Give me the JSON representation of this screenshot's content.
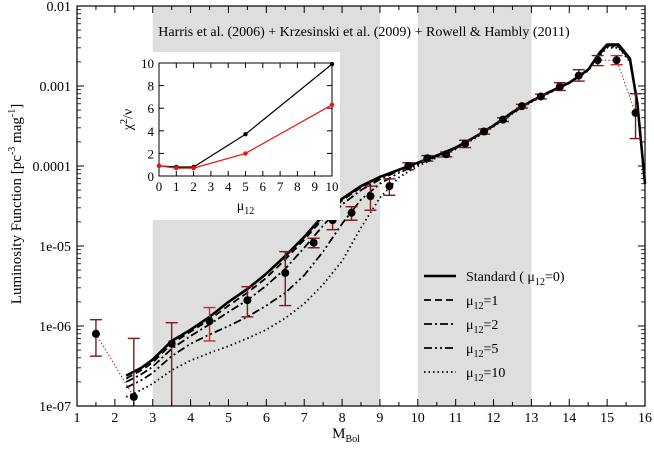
{
  "chart_data": {
    "type": "line",
    "annotation": "Harris et  al. (2006) + Krzesinski et al. (2009) + Rowell & Hambly (2011)",
    "xlabel": "M",
    "xlabel_sub": "Bol",
    "ylabel": "Luminosity Function [pc",
    "ylabel_sup1": "-3",
    "ylabel_mid": " mag",
    "ylabel_sup2": "-1",
    "ylabel_end": "]",
    "xlim": [
      1,
      16
    ],
    "ylim": [
      1e-07,
      0.01
    ],
    "yscale": "log",
    "x_ticks": [
      "1",
      "2",
      "3",
      "4",
      "5",
      "6",
      "7",
      "8",
      "9",
      "10",
      "11",
      "12",
      "13",
      "14",
      "15",
      "16"
    ],
    "y_ticks": [
      {
        "value": 1e-07,
        "label": "1e-07"
      },
      {
        "value": 1e-06,
        "label": "1e-06"
      },
      {
        "value": 1e-05,
        "label": "1e-05"
      },
      {
        "value": 0.0001,
        "label": "0.0001"
      },
      {
        "value": 0.001,
        "label": "0.001"
      },
      {
        "value": 0.01,
        "label": "0.01"
      }
    ],
    "shaded_bands": [
      [
        3,
        9
      ],
      [
        10,
        13
      ]
    ],
    "series": [
      {
        "name": "Standard ( μ12=0)",
        "legend_label": "Standard ( μ",
        "legend_sub": "12",
        "legend_end": "=0)",
        "style": "solid",
        "x": [
          2.3,
          2.7,
          3.0,
          3.5,
          4.0,
          4.5,
          5.0,
          5.5,
          6.0,
          6.5,
          7.0,
          7.5,
          8.0,
          8.5,
          9.0,
          9.5,
          10.0,
          10.5,
          11.0,
          11.5,
          12.0,
          12.5,
          13.0,
          13.5,
          14.0,
          14.5,
          14.8,
          15.0,
          15.3,
          15.6,
          15.8,
          16.0
        ],
        "y": [
          2.4e-07,
          3e-07,
          3.8e-07,
          6.5e-07,
          9e-07,
          1.3e-06,
          2e-06,
          2.9e-06,
          4.5e-06,
          7.5e-06,
          1.3e-05,
          2.4e-05,
          3.9e-05,
          5.6e-05,
          7.3e-05,
          9e-05,
          0.00011,
          0.000135,
          0.00017,
          0.00023,
          0.00032,
          0.00047,
          0.00065,
          0.00085,
          0.0011,
          0.0016,
          0.0026,
          0.0033,
          0.0033,
          0.0022,
          0.0006,
          6e-05
        ]
      },
      {
        "name": "μ12=1",
        "legend_label": "μ",
        "legend_sub": "12",
        "legend_end": "=1",
        "style": "dashed",
        "x": [
          2.3,
          2.7,
          3.0,
          3.5,
          4.0,
          4.5,
          5.0,
          5.5,
          6.0,
          6.5,
          7.0,
          7.5,
          8.0,
          8.5,
          9.0,
          9.5,
          10.0,
          10.5,
          11.0,
          11.5,
          12.0,
          12.5,
          13.0,
          13.5,
          14.0,
          14.5,
          14.8,
          15.0,
          15.3,
          15.6,
          15.8,
          16.0
        ],
        "y": [
          2.2e-07,
          2.8e-07,
          3.5e-07,
          6e-07,
          8.5e-07,
          1.2e-06,
          1.8e-06,
          2.6e-06,
          4e-06,
          6.8e-06,
          1.2e-05,
          2.2e-05,
          3.7e-05,
          5.4e-05,
          7.1e-05,
          8.9e-05,
          0.00011,
          0.000135,
          0.00017,
          0.00023,
          0.00032,
          0.00047,
          0.00065,
          0.00085,
          0.0011,
          0.0016,
          0.0025,
          0.0032,
          0.0032,
          0.0021,
          0.0006,
          6e-05
        ]
      },
      {
        "name": "μ12=2",
        "legend_label": "μ",
        "legend_sub": "12",
        "legend_end": "=2",
        "style": "dashdot",
        "x": [
          2.3,
          2.7,
          3.0,
          3.5,
          4.0,
          4.5,
          5.0,
          5.5,
          6.0,
          6.5,
          7.0,
          7.5,
          8.0,
          8.5,
          9.0,
          9.5,
          10.0,
          10.5,
          11.0,
          11.5,
          12.0,
          12.5,
          13.0,
          13.5,
          14.0,
          14.5,
          14.8,
          15.0,
          15.3,
          15.6,
          15.8,
          16.0
        ],
        "y": [
          2e-07,
          2.5e-07,
          3.1e-07,
          5.2e-07,
          7.5e-07,
          1.05e-06,
          1.5e-06,
          2.1e-06,
          3.2e-06,
          5.2e-06,
          9.5e-06,
          1.8e-05,
          3.3e-05,
          5e-05,
          6.8e-05,
          8.7e-05,
          0.000108,
          0.000133,
          0.00017,
          0.00023,
          0.00032,
          0.00047,
          0.00065,
          0.00085,
          0.0011,
          0.0016,
          0.0025,
          0.0032,
          0.0032,
          0.0021,
          0.0006,
          6e-05
        ]
      },
      {
        "name": "μ12=5",
        "legend_label": "μ",
        "legend_sub": "12",
        "legend_end": "=5",
        "style": "dashdotdot",
        "x": [
          2.3,
          2.7,
          3.0,
          3.5,
          4.0,
          4.5,
          5.0,
          5.5,
          6.0,
          6.5,
          7.0,
          7.5,
          8.0,
          8.5,
          9.0,
          9.5,
          10.0,
          10.5,
          11.0,
          11.5,
          12.0,
          12.5,
          13.0,
          13.5,
          14.0,
          14.5,
          14.8,
          15.0,
          15.3,
          15.6,
          15.8,
          16.0
        ],
        "y": [
          1.7e-07,
          2.1e-07,
          2.6e-07,
          4.2e-07,
          6e-07,
          7.8e-07,
          1e-06,
          1.3e-06,
          1.8e-06,
          2.6e-06,
          4.3e-06,
          8.5e-06,
          1.9e-05,
          3.8e-05,
          6e-05,
          8.2e-05,
          0.000105,
          0.00013,
          0.000165,
          0.000225,
          0.000315,
          0.00046,
          0.00064,
          0.00084,
          0.0011,
          0.0016,
          0.0025,
          0.0031,
          0.0031,
          0.0021,
          0.0006,
          6e-05
        ]
      },
      {
        "name": "μ12=10",
        "legend_label": "μ",
        "legend_sub": "12",
        "legend_end": "=10",
        "style": "dotted",
        "x": [
          2.3,
          2.7,
          3.0,
          3.5,
          4.0,
          4.5,
          5.0,
          5.5,
          6.0,
          6.5,
          7.0,
          7.5,
          8.0,
          8.5,
          9.0,
          9.5,
          10.0,
          10.5,
          11.0,
          11.5,
          12.0,
          12.5,
          13.0,
          13.5,
          14.0,
          14.5,
          14.8,
          15.0,
          15.3,
          15.6,
          15.8,
          16.0
        ],
        "y": [
          1.3e-07,
          1.6e-07,
          1.9e-07,
          2.8e-07,
          3.7e-07,
          4.6e-07,
          5.6e-07,
          7e-07,
          9e-07,
          1.25e-06,
          1.9e-06,
          3.3e-06,
          6.5e-06,
          1.7e-05,
          4e-05,
          7.2e-05,
          0.0001,
          0.000127,
          0.000162,
          0.00022,
          0.00031,
          0.00045,
          0.00063,
          0.00083,
          0.00108,
          0.00155,
          0.0024,
          0.003,
          0.003,
          0.002,
          0.0006,
          6e-05
        ]
      }
    ],
    "observed": {
      "x": [
        1.5,
        2.5,
        3.5,
        4.5,
        5.5,
        6.5,
        7.25,
        7.75,
        8.25,
        8.75,
        9.25,
        9.75,
        10.25,
        10.75,
        11.25,
        11.75,
        12.25,
        12.75,
        13.25,
        13.75,
        14.25,
        14.75,
        15.25,
        15.75
      ],
      "y": [
        8e-07,
        1.3e-07,
        6e-07,
        1.15e-06,
        2.1e-06,
        4.6e-06,
        1.1e-05,
        2.1e-05,
        2.6e-05,
        4.2e-05,
        5.6e-05,
        0.0001,
        0.000125,
        0.00014,
        0.00019,
        0.00027,
        0.00038,
        0.00056,
        0.00074,
        0.00098,
        0.00135,
        0.0021,
        0.0021,
        0.00046
      ],
      "y_low": [
        4.2e-07,
        1e-08,
        3e-08,
        6.5e-07,
        1.3e-06,
        1.8e-06,
        9.5e-06,
        1.6e-05,
        2.1e-05,
        2.8e-05,
        4.3e-05,
        9e-05,
        0.000115,
        0.00013,
        0.00017,
        0.00025,
        0.00036,
        0.00053,
        0.00069,
        0.00088,
        0.00115,
        0.0018,
        0.00185,
        0.00022
      ],
      "y_high": [
        1.2e-06,
        7e-07,
        1.1e-06,
        1.7e-06,
        3.1e-06,
        8.5e-06,
        1.25e-05,
        2.5e-05,
        3.1e-05,
        5.6e-05,
        6.9e-05,
        0.00011,
        0.000135,
        0.00015,
        0.00021,
        0.00029,
        0.0004,
        0.00059,
        0.00079,
        0.0011,
        0.0016,
        0.0024,
        0.0024,
        0.0008
      ],
      "colors": {
        "marker": "#000000",
        "error_bar": "#7a1a1a",
        "error_bar_red": "#dd2222",
        "connector": "#b22222"
      }
    },
    "inset": {
      "type": "line",
      "xlabel": "μ",
      "xlabel_sub": "12",
      "ylabel": "χ",
      "ylabel_sup": "2",
      "ylabel_end": "/ν",
      "xlim": [
        0,
        10
      ],
      "ylim": [
        0,
        10
      ],
      "x_ticks": [
        "0",
        "1",
        "2",
        "3",
        "4",
        "5",
        "6",
        "7",
        "8",
        "9",
        "10"
      ],
      "y_ticks": [
        "0",
        "2",
        "4",
        "6",
        "8",
        "10"
      ],
      "series": [
        {
          "color": "#000000",
          "x": [
            0,
            1,
            2,
            5,
            10
          ],
          "y": [
            0.9,
            0.8,
            0.8,
            3.7,
            9.9
          ]
        },
        {
          "color": "#ee1111",
          "x": [
            0,
            1,
            2,
            5,
            10
          ],
          "y": [
            0.9,
            0.7,
            0.7,
            2.0,
            6.3
          ]
        }
      ]
    },
    "legend_position": "lower-right",
    "colors": {
      "shade": "#dedede",
      "line": "#000000"
    }
  }
}
